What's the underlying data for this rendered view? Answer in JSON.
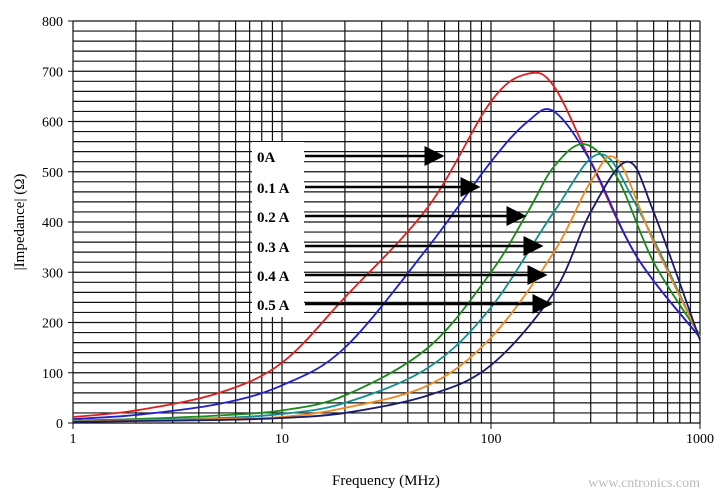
{
  "chart_data": {
    "type": "line",
    "title": "",
    "xlabel": "Frequency (MHz)",
    "ylabel": "|Impedance| (Ω)",
    "xscale": "log",
    "xlim": [
      1,
      1000
    ],
    "ylim": [
      0,
      800
    ],
    "xticks": [
      "1",
      "10",
      "100",
      "1000"
    ],
    "yticks": [
      "0",
      "100",
      "200",
      "300",
      "400",
      "500",
      "600",
      "700",
      "800"
    ],
    "grid": true,
    "series": [
      {
        "name": "0A",
        "color": "#e02020",
        "points": [
          [
            1,
            12
          ],
          [
            2,
            25
          ],
          [
            5,
            60
          ],
          [
            10,
            120
          ],
          [
            20,
            250
          ],
          [
            50,
            430
          ],
          [
            100,
            640
          ],
          [
            150,
            695
          ],
          [
            200,
            670
          ],
          [
            300,
            520
          ],
          [
            500,
            330
          ],
          [
            1000,
            170
          ]
        ]
      },
      {
        "name": "0.1 A",
        "color": "#2020d0",
        "points": [
          [
            1,
            8
          ],
          [
            2,
            16
          ],
          [
            5,
            38
          ],
          [
            10,
            75
          ],
          [
            20,
            150
          ],
          [
            50,
            350
          ],
          [
            100,
            520
          ],
          [
            150,
            600
          ],
          [
            200,
            620
          ],
          [
            300,
            520
          ],
          [
            500,
            330
          ],
          [
            1000,
            170
          ]
        ]
      },
      {
        "name": "0.2 A",
        "color": "#1a8a1a",
        "points": [
          [
            1,
            5
          ],
          [
            2,
            8
          ],
          [
            5,
            15
          ],
          [
            10,
            25
          ],
          [
            20,
            55
          ],
          [
            50,
            150
          ],
          [
            100,
            300
          ],
          [
            150,
            420
          ],
          [
            200,
            510
          ],
          [
            280,
            555
          ],
          [
            400,
            490
          ],
          [
            600,
            320
          ],
          [
            1000,
            175
          ]
        ]
      },
      {
        "name": "0.3 A",
        "color": "#169090",
        "points": [
          [
            1,
            4
          ],
          [
            2,
            6
          ],
          [
            5,
            10
          ],
          [
            10,
            18
          ],
          [
            20,
            40
          ],
          [
            50,
            110
          ],
          [
            100,
            230
          ],
          [
            200,
            420
          ],
          [
            330,
            535
          ],
          [
            500,
            430
          ],
          [
            1000,
            170
          ]
        ]
      },
      {
        "name": "0.4 A",
        "color": "#f08a20",
        "points": [
          [
            1,
            3
          ],
          [
            2,
            5
          ],
          [
            5,
            8
          ],
          [
            10,
            12
          ],
          [
            20,
            30
          ],
          [
            50,
            75
          ],
          [
            100,
            170
          ],
          [
            200,
            340
          ],
          [
            300,
            480
          ],
          [
            400,
            525
          ],
          [
            600,
            360
          ],
          [
            1000,
            170
          ]
        ]
      },
      {
        "name": "0.5 A",
        "color": "#1a1a70",
        "points": [
          [
            1,
            2
          ],
          [
            2,
            4
          ],
          [
            5,
            6
          ],
          [
            10,
            10
          ],
          [
            20,
            20
          ],
          [
            50,
            55
          ],
          [
            100,
            115
          ],
          [
            200,
            260
          ],
          [
            300,
            420
          ],
          [
            450,
            520
          ],
          [
            600,
            420
          ],
          [
            1000,
            165
          ]
        ]
      }
    ],
    "annotations": [
      "0A",
      "0.1 A",
      "0.2 A",
      "0.3 A",
      "0.4 A",
      "0.5 A"
    ]
  },
  "watermark": "www.cntronics.com"
}
